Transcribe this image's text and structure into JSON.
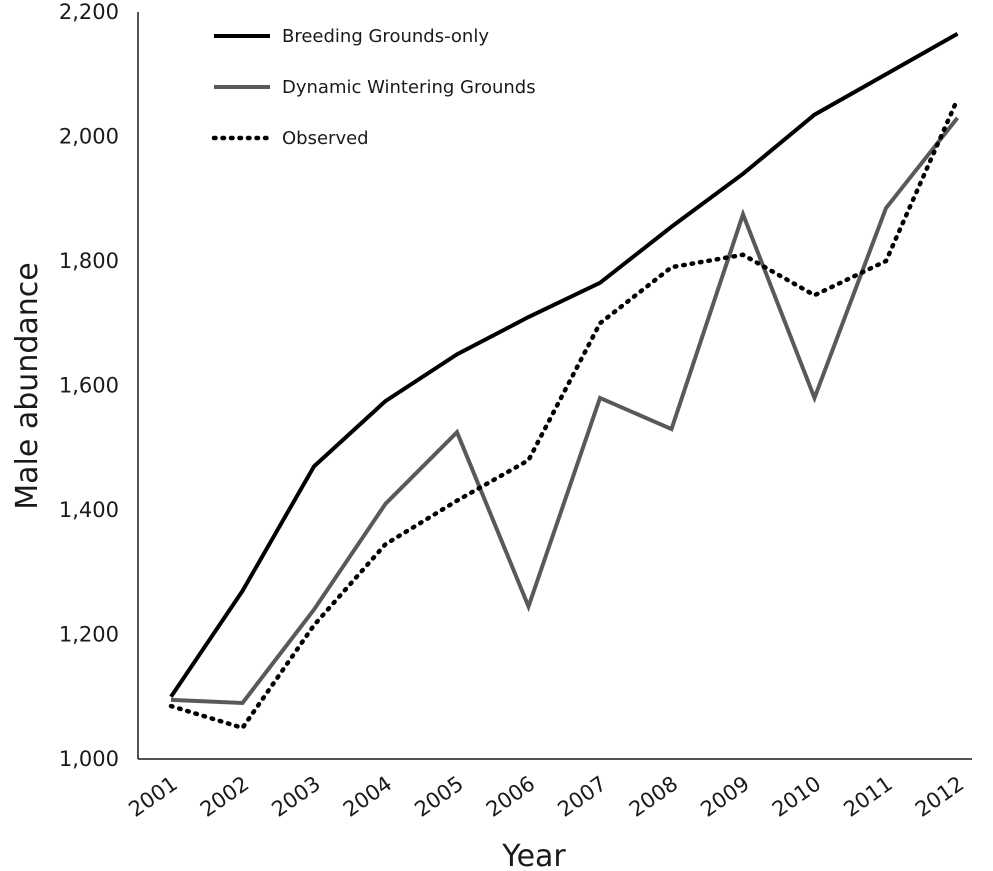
{
  "chart_data": {
    "type": "line",
    "xlabel": "Year",
    "ylabel": "Male abundance",
    "ylim": [
      1000,
      2200
    ],
    "yticks": [
      1000,
      1200,
      1400,
      1600,
      1800,
      2000,
      2200
    ],
    "ytick_labels": [
      "1,000",
      "1,200",
      "1,400",
      "1,600",
      "1,800",
      "2,000",
      "2,200"
    ],
    "categories": [
      "2001",
      "2002",
      "2003",
      "2004",
      "2005",
      "2006",
      "2007",
      "2008",
      "2009",
      "2010",
      "2011",
      "2012"
    ],
    "grid": false,
    "legend_position": "top-left",
    "series": [
      {
        "name": "Breeding Grounds-only",
        "color": "#000000",
        "style": "solid",
        "values": [
          1100,
          1270,
          1470,
          1575,
          1650,
          1710,
          1765,
          1855,
          1940,
          2035,
          2100,
          2165
        ]
      },
      {
        "name": "Dynamic Wintering Grounds",
        "color": "#595959",
        "style": "solid",
        "values": [
          1095,
          1090,
          1240,
          1410,
          1525,
          1245,
          1580,
          1530,
          1875,
          1580,
          1885,
          2030
        ]
      },
      {
        "name": "Observed",
        "color": "#000000",
        "style": "dotted",
        "values": [
          1085,
          1050,
          1215,
          1345,
          1415,
          1480,
          1700,
          1790,
          1810,
          1745,
          1800,
          2060
        ]
      }
    ]
  }
}
